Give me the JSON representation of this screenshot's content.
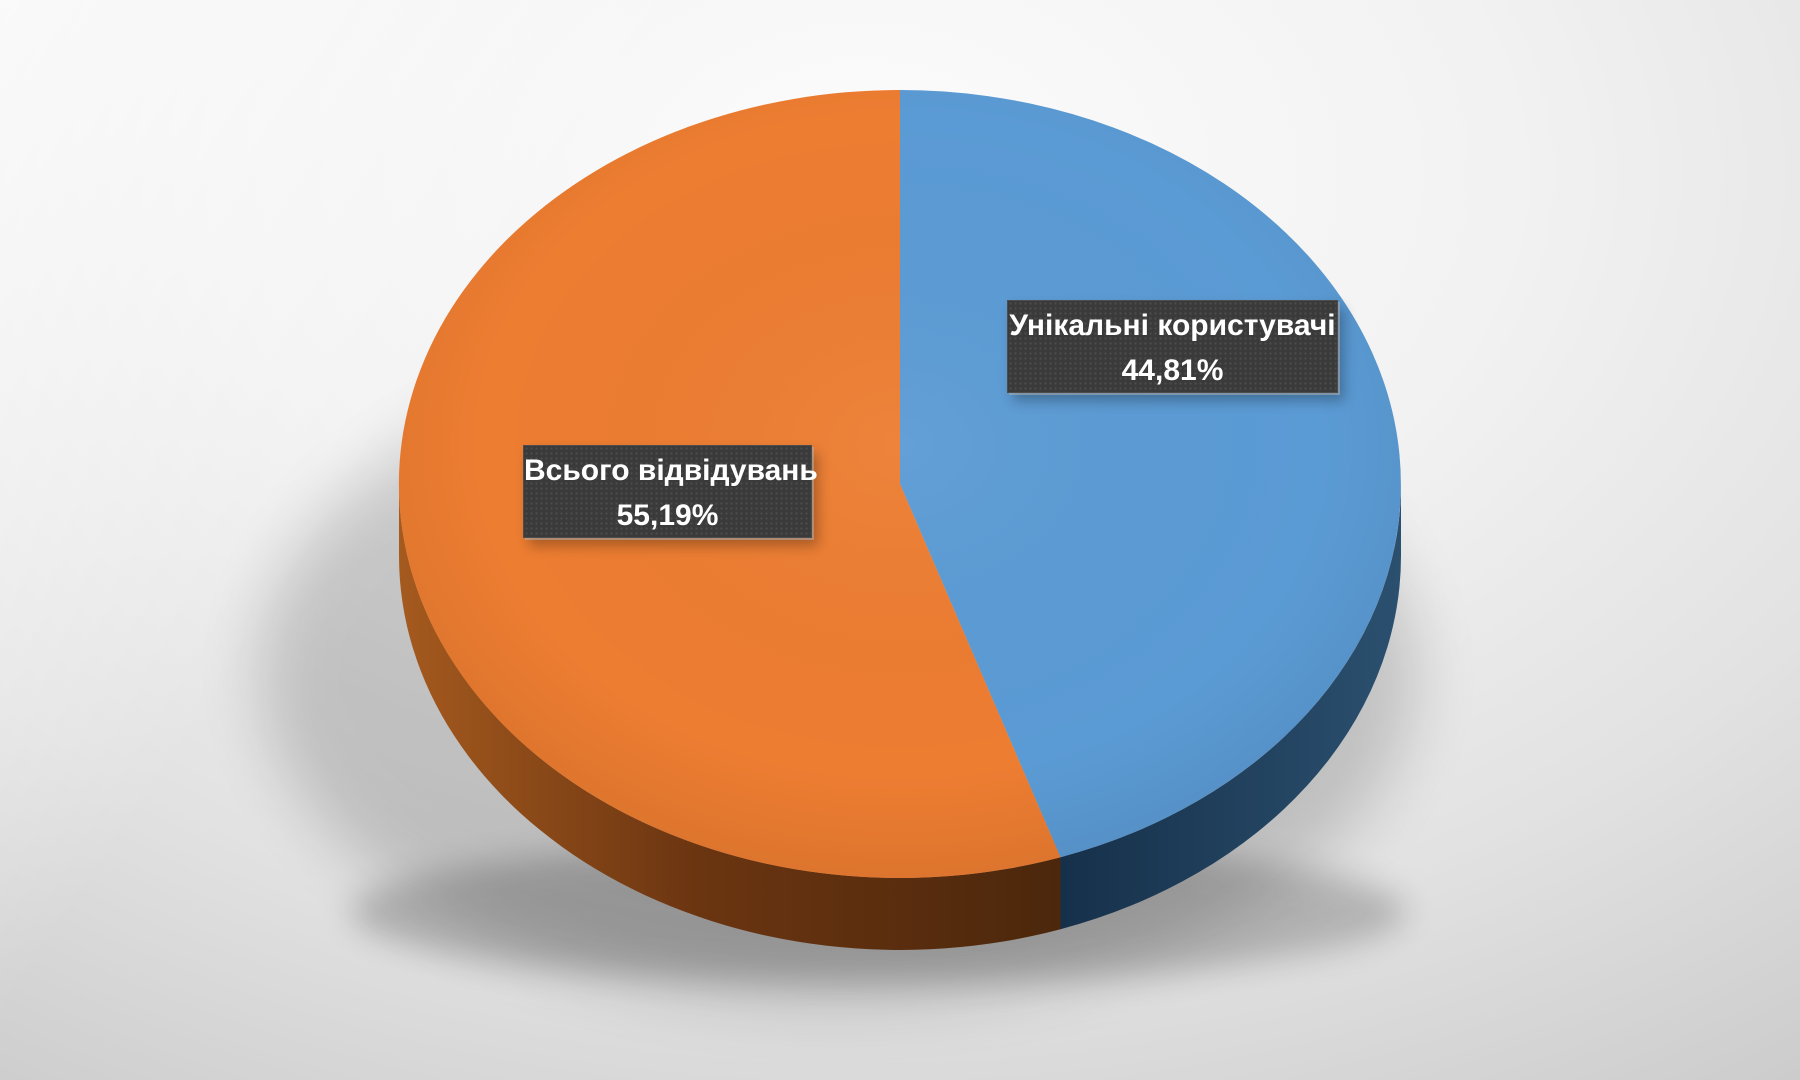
{
  "chart_data": {
    "type": "pie",
    "style": "3d-exploded-none",
    "title": "",
    "legend": "none",
    "direction": "clockwise",
    "start_angle_deg": 0,
    "categories": [
      "Унікальні користувачі",
      "Всього відвідувань"
    ],
    "values": [
      44.81,
      55.19
    ],
    "labels": [
      {
        "name": "Унікальні користувачі",
        "percent_text": "44,81%",
        "value_pct": 44.81,
        "color": "#5B9BD5"
      },
      {
        "name": "Всього відвідувань",
        "percent_text": "55,19%",
        "value_pct": 55.19,
        "color": "#ED7D31"
      }
    ],
    "label_style": {
      "background": "#3A3A3A",
      "text_color": "#FFFFFF"
    }
  }
}
